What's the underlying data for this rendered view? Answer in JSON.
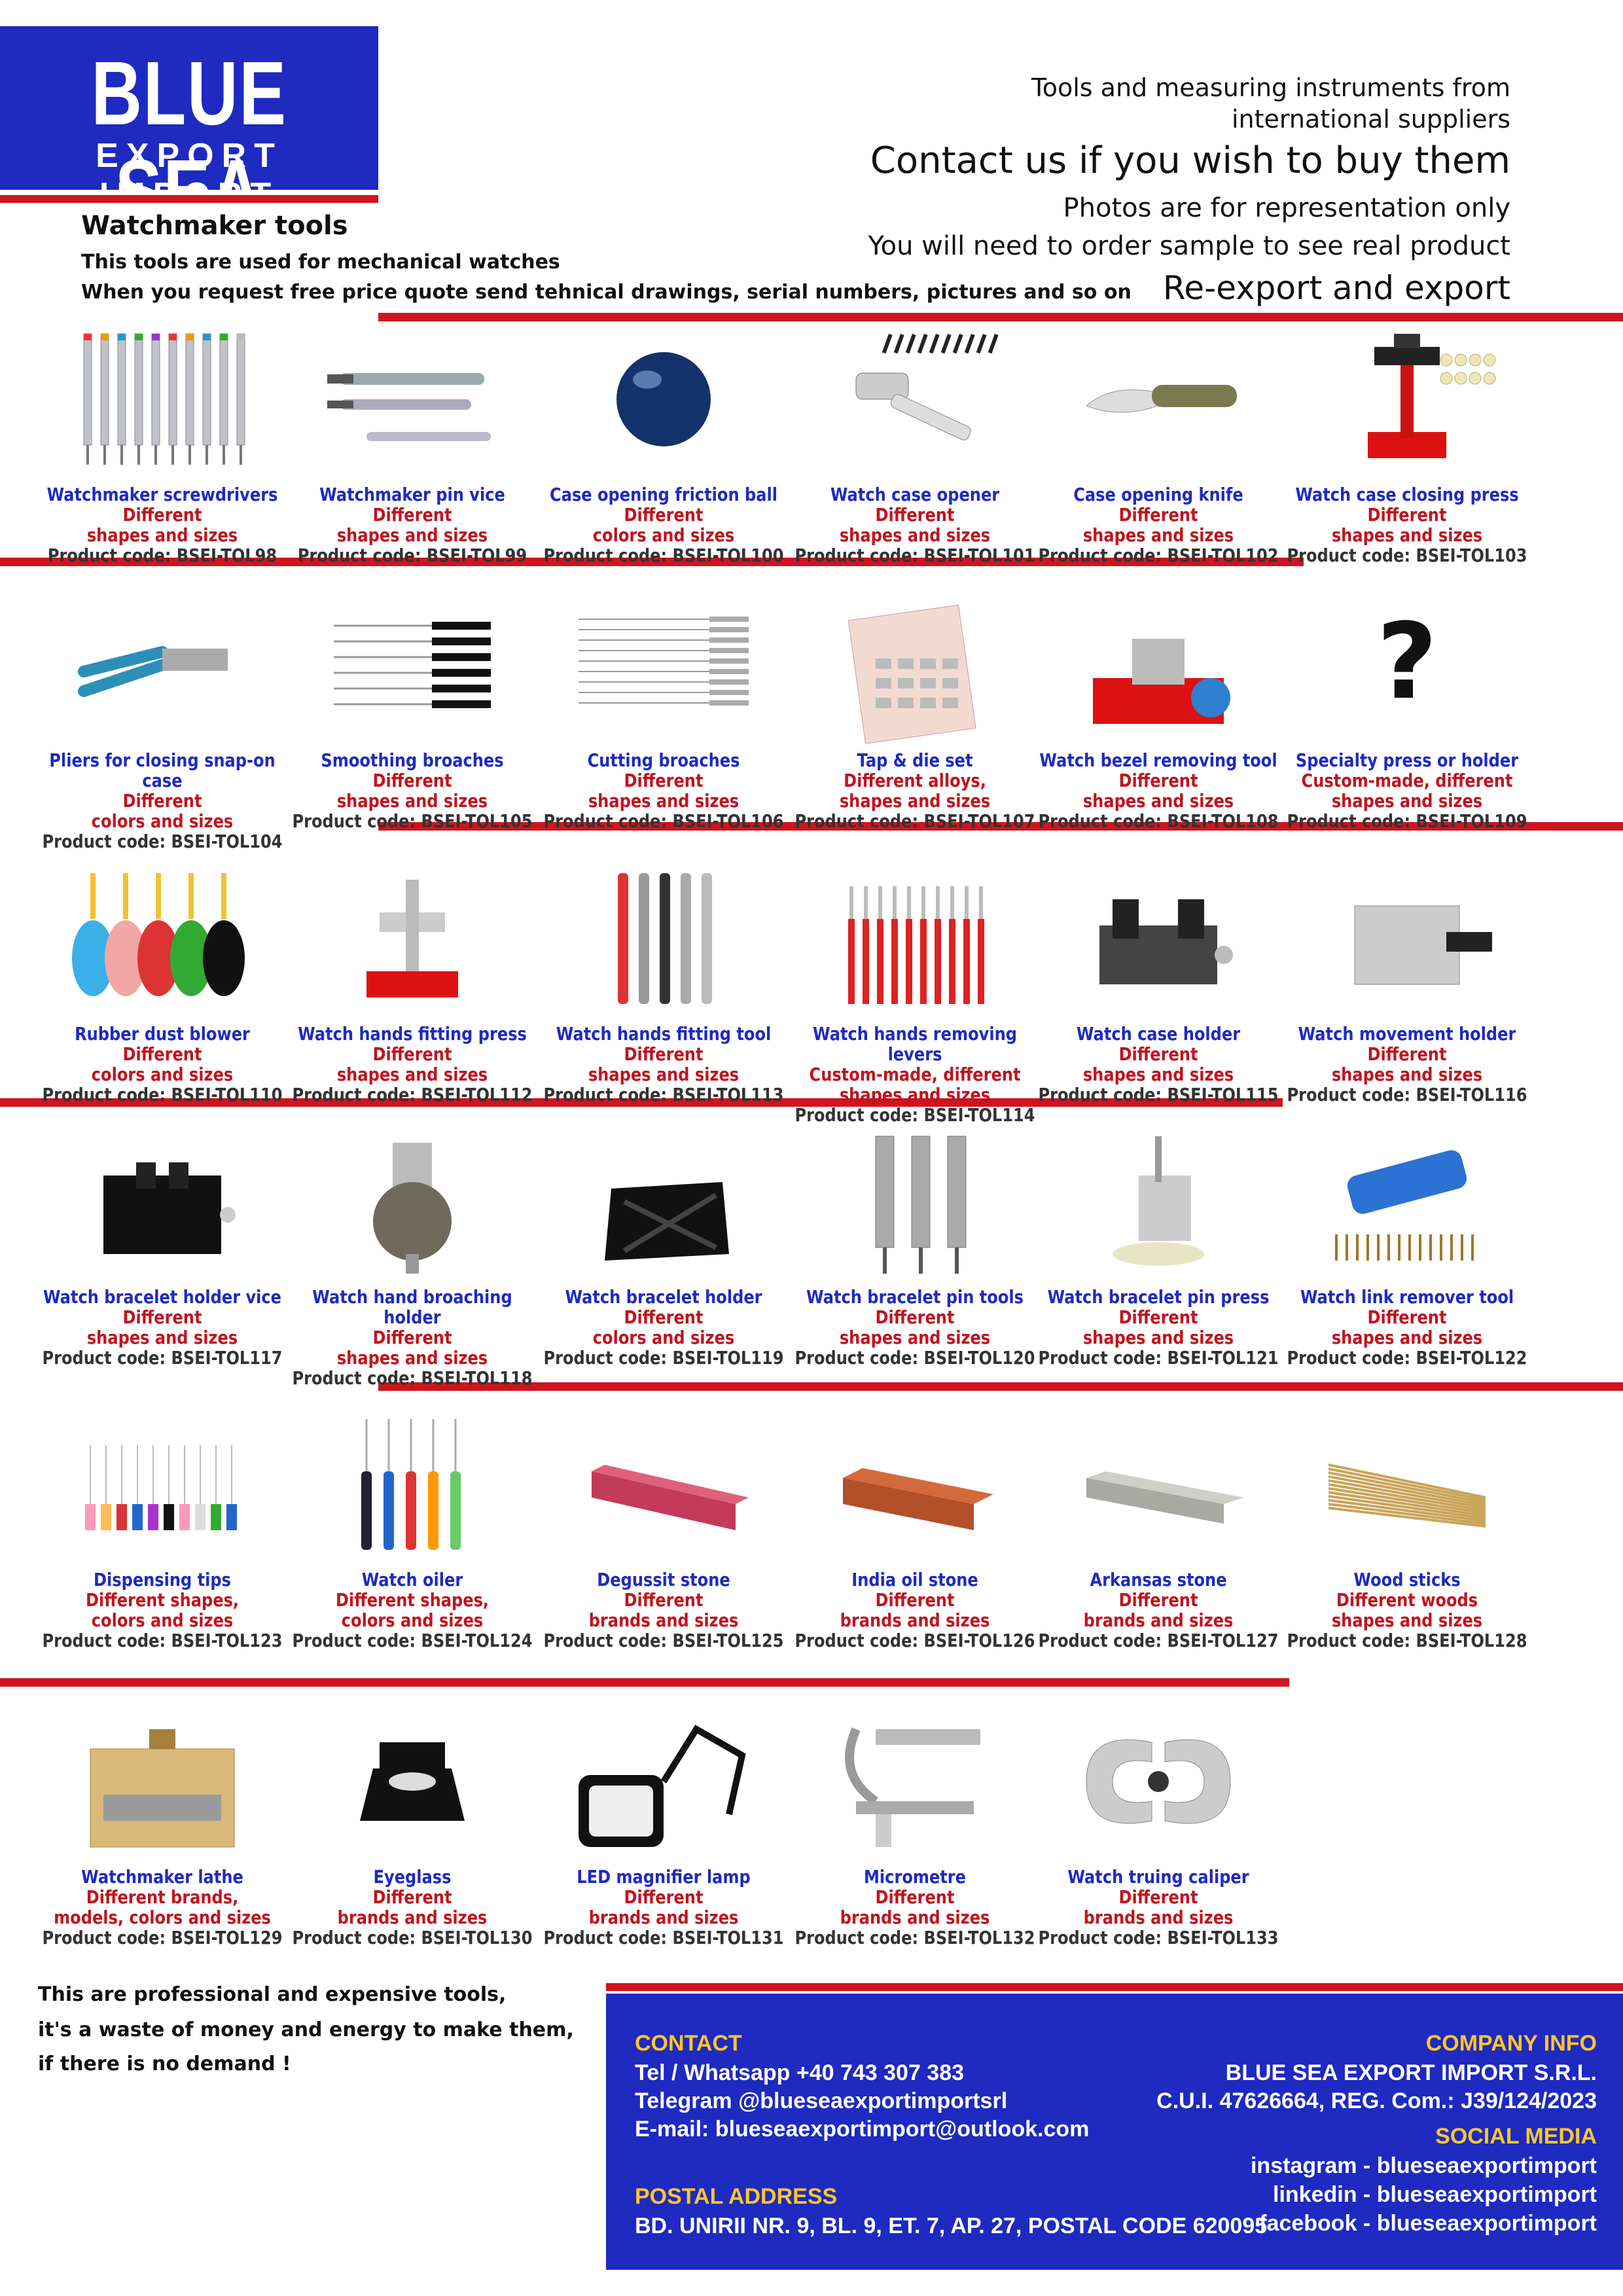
{
  "header": {
    "logo_line1": "BLUE SEA",
    "logo_line2": "EXPORT IMPORT",
    "right_line1": "Tools and measuring instruments from",
    "right_line1b": "international suppliers",
    "right_line2": "Contact us if you wish to buy them",
    "right_line3": "Photos are for representation only",
    "right_line4": "You will need to order sample to see real product",
    "right_line5": "Re-export and export",
    "title": "Watchmaker tools",
    "sub1": "This tools are used for mechanical watches",
    "sub2": "When you request free price quote send tehnical drawings, serial numbers, pictures and so on"
  },
  "products": [
    {
      "name": "Watchmaker screwdrivers",
      "desc1": "Different",
      "desc2": "shapes and sizes",
      "code": "Product code: BSEI-TOL98",
      "icon": "screwdrivers-icon"
    },
    {
      "name": "Watchmaker pin vice",
      "desc1": "Different",
      "desc2": "shapes and sizes",
      "code": "Product code: BSEI-TOL99",
      "icon": "pin-vice-icon"
    },
    {
      "name": "Case opening friction ball",
      "desc1": "Different",
      "desc2": "colors and sizes",
      "code": "Product code: BSEI-TOL100",
      "icon": "friction-ball-icon"
    },
    {
      "name": "Watch case opener",
      "desc1": "Different",
      "desc2": "shapes and sizes",
      "code": "Product code: BSEI-TOL101",
      "icon": "case-opener-icon"
    },
    {
      "name": "Case opening knife",
      "desc1": "Different",
      "desc2": "shapes and sizes",
      "code": "Product code: BSEI-TOL102",
      "icon": "knife-icon"
    },
    {
      "name": "Watch case closing press",
      "desc1": "Different",
      "desc2": "shapes and sizes",
      "code": "Product code: BSEI-TOL103",
      "icon": "closing-press-icon"
    },
    {
      "name": "Pliers for closing snap-on case",
      "desc1": "Different",
      "desc2": "colors and sizes",
      "code": "Product code: BSEI-TOL104",
      "icon": "pliers-icon"
    },
    {
      "name": "Smoothing broaches",
      "desc1": "Different",
      "desc2": "shapes and sizes",
      "code": "Product code: BSEI-TOL105",
      "icon": "smoothing-broaches-icon"
    },
    {
      "name": "Cutting broaches",
      "desc1": "Different",
      "desc2": "shapes and sizes",
      "code": "Product code: BSEI-TOL106",
      "icon": "cutting-broaches-icon"
    },
    {
      "name": "Tap & die set",
      "desc1": "Different alloys,",
      "desc2": "shapes and sizes",
      "code": "Product code: BSEI-TOL107",
      "icon": "tap-die-set-icon"
    },
    {
      "name": "Watch bezel removing tool",
      "desc1": "Different",
      "desc2": "shapes and sizes",
      "code": "Product code: BSEI-TOL108",
      "icon": "bezel-tool-icon"
    },
    {
      "name": "Specialty press or holder",
      "desc1": "Custom-made, different",
      "desc2": "shapes and sizes",
      "code": "Product code: BSEI-TOL109",
      "icon": "question-mark-icon"
    },
    {
      "name": "Rubber dust blower",
      "desc1": "Different",
      "desc2": "colors and sizes",
      "code": "Product code: BSEI-TOL110",
      "icon": "dust-blower-icon"
    },
    {
      "name": "Watch hands fitting press",
      "desc1": "Different",
      "desc2": "shapes and sizes",
      "code": "Product code: BSEI-TOL112",
      "icon": "hands-press-icon"
    },
    {
      "name": "Watch hands fitting tool",
      "desc1": "Different",
      "desc2": "shapes and sizes",
      "code": "Product code: BSEI-TOL113",
      "icon": "hands-fitting-tool-icon"
    },
    {
      "name": "Watch hands removing levers",
      "desc1": "Custom-made, different",
      "desc2": "shapes and sizes",
      "code": "Product code: BSEI-TOL114",
      "icon": "removing-levers-icon"
    },
    {
      "name": "Watch case holder",
      "desc1": "Different",
      "desc2": "shapes and sizes",
      "code": "Product code: BSEI-TOL115",
      "icon": "case-holder-icon"
    },
    {
      "name": "Watch movement holder",
      "desc1": "Different",
      "desc2": "shapes and sizes",
      "code": "Product code: BSEI-TOL116",
      "icon": "movement-holder-icon"
    },
    {
      "name": "Watch bracelet holder vice",
      "desc1": "Different",
      "desc2": "shapes and sizes",
      "code": "Product code: BSEI-TOL117",
      "icon": "bracelet-vice-icon"
    },
    {
      "name": "Watch hand broaching holder",
      "desc1": "Different",
      "desc2": "shapes and sizes",
      "code": "Product code: BSEI-TOL118",
      "icon": "broaching-holder-icon"
    },
    {
      "name": "Watch bracelet holder",
      "desc1": "Different",
      "desc2": "colors and sizes",
      "code": "Product code: BSEI-TOL119",
      "icon": "bracelet-holder-icon"
    },
    {
      "name": "Watch bracelet pin tools",
      "desc1": "Different",
      "desc2": "shapes and sizes",
      "code": "Product code: BSEI-TOL120",
      "icon": "pin-tools-icon"
    },
    {
      "name": "Watch bracelet pin press",
      "desc1": "Different",
      "desc2": "shapes and sizes",
      "code": "Product code: BSEI-TOL121",
      "icon": "pin-press-icon"
    },
    {
      "name": "Watch link remover tool",
      "desc1": "Different",
      "desc2": "shapes and sizes",
      "code": "Product code: BSEI-TOL122",
      "icon": "link-remover-icon"
    },
    {
      "name": "Dispensing tips",
      "desc1": "Different shapes,",
      "desc2": "colors and sizes",
      "code": "Product code: BSEI-TOL123",
      "icon": "dispensing-tips-icon"
    },
    {
      "name": "Watch oiler",
      "desc1": "Different shapes,",
      "desc2": "colors and sizes",
      "code": "Product code: BSEI-TOL124",
      "icon": "oiler-icon"
    },
    {
      "name": "Degussit stone",
      "desc1": "Different",
      "desc2": "brands and sizes",
      "code": "Product code: BSEI-TOL125",
      "icon": "degussit-stone-icon"
    },
    {
      "name": "India oil stone",
      "desc1": "Different",
      "desc2": "brands and sizes",
      "code": "Product code: BSEI-TOL126",
      "icon": "india-stone-icon"
    },
    {
      "name": "Arkansas stone",
      "desc1": "Different",
      "desc2": "brands and sizes",
      "code": "Product code: BSEI-TOL127",
      "icon": "arkansas-stone-icon"
    },
    {
      "name": "Wood sticks",
      "desc1": "Different woods",
      "desc2": "shapes and sizes",
      "code": "Product code: BSEI-TOL128",
      "icon": "wood-sticks-icon"
    },
    {
      "name": "Watchmaker lathe",
      "desc1": "Different brands,",
      "desc2": "models, colors and sizes",
      "code": "Product code: BSEI-TOL129",
      "icon": "lathe-icon"
    },
    {
      "name": "Eyeglass",
      "desc1": "Different",
      "desc2": "brands and sizes",
      "code": "Product code: BSEI-TOL130",
      "icon": "eyeglass-icon"
    },
    {
      "name": "LED magnifier lamp",
      "desc1": "Different",
      "desc2": "brands and sizes",
      "code": "Product code: BSEI-TOL131",
      "icon": "magnifier-lamp-icon"
    },
    {
      "name": "Micrometre",
      "desc1": "Different",
      "desc2": "brands and sizes",
      "code": "Product code: BSEI-TOL132",
      "icon": "micrometre-icon"
    },
    {
      "name": "Watch truing caliper",
      "desc1": "Different",
      "desc2": "brands and sizes",
      "code": "Product code: BSEI-TOL133",
      "icon": "truing-caliper-icon"
    }
  ],
  "footer_note": {
    "line1": "This are professional and expensive tools,",
    "line2": "it's a waste of money and energy to make them,",
    "line3": "if there is no demand !"
  },
  "contact": {
    "label": "CONTACT",
    "phone": "Tel / Whatsapp +40 743 307 383",
    "telegram": "Telegram @blueseaexportimportsrl",
    "email": "E-mail: blueseaexportimport@outlook.com",
    "postal_label": "POSTAL ADDRESS",
    "postal": "BD. UNIRII NR. 9, BL. 9, ET. 7, AP. 27, POSTAL CODE 620095"
  },
  "company": {
    "label": "COMPANY INFO",
    "name": "BLUE SEA EXPORT IMPORT S.R.L.",
    "reg": "C.U.I. 47626664, REG. Com.: J39/124/2023",
    "social_label": "SOCIAL MEDIA",
    "instagram": "instagram - blueseaexportimport",
    "linkedin": "linkedin - blueseaexportimport",
    "facebook": "facebook - blueseaexportimport"
  },
  "colors": {
    "brand_blue": "#1e2ac0",
    "accent_red": "#d0141f",
    "label_yellow": "#ffc629"
  }
}
